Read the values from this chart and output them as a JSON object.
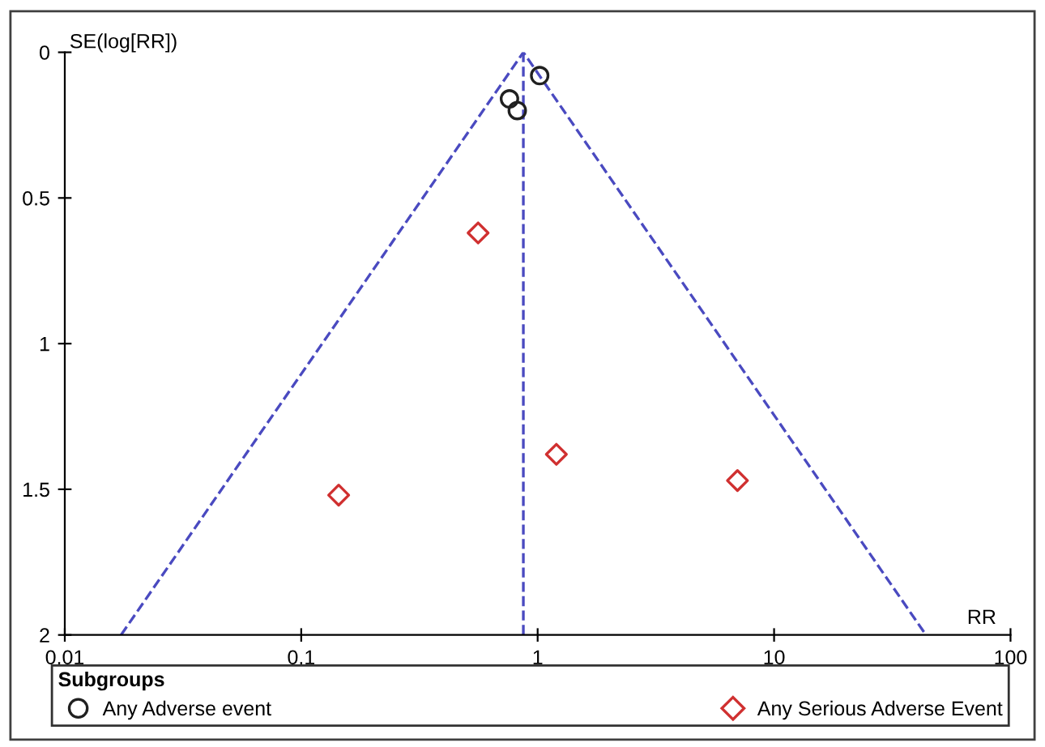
{
  "chart_data": {
    "type": "scatter",
    "xlabel": "RR",
    "ylabel": "SE(log[RR])",
    "legend_title": "Subgroups",
    "log": "x",
    "xlim": [
      0.01,
      100
    ],
    "xticks": [
      0.01,
      0.1,
      1,
      10,
      100
    ],
    "ylim": [
      2,
      0
    ],
    "yticks": [
      0,
      0.5,
      1,
      1.5,
      2
    ],
    "grid": false,
    "legend": "bottom",
    "series": [
      {
        "name": "Any Adverse event",
        "color": "#202020",
        "marker": "circle",
        "x": [
          1.02,
          0.76,
          0.82
        ],
        "values": [
          0.08,
          0.16,
          0.2
        ]
      },
      {
        "name": "Any Serious Adverse Event",
        "color": "#d03030",
        "marker": "diamond",
        "x": [
          0.56,
          0.144,
          1.2,
          7.0
        ],
        "values": [
          0.62,
          1.52,
          1.38,
          1.47
        ]
      },
      {
        "type": "line",
        "color": "#4a4ac0",
        "line_style": "dashed",
        "x": [
          0.0173,
          0.87,
          43.9
        ],
        "values": [
          2,
          0,
          2
        ]
      },
      {
        "type": "line",
        "color": "#4a4ac0",
        "line_style": "dashed",
        "x": [
          0.87,
          0.87
        ],
        "values": [
          0,
          2
        ]
      }
    ]
  }
}
